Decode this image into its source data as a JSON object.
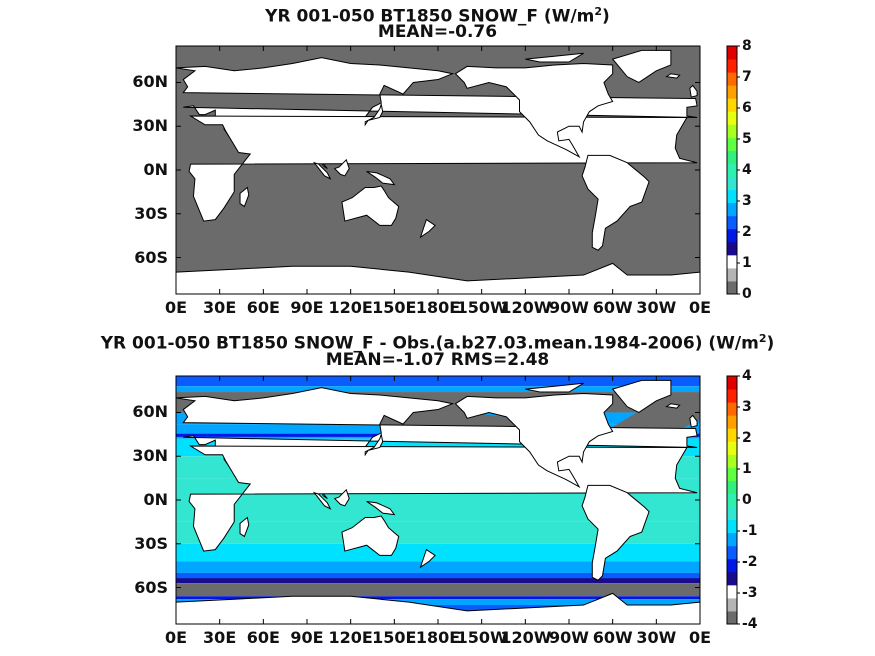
{
  "chart_data": [
    {
      "type": "heatmap",
      "title_main": "YR 001-050 BT1850  SNOW_F (W/m",
      "title_sup": "2",
      "title_end": ")",
      "subtitle": "MEAN=-0.76",
      "y_ticks": [
        "60N",
        "30N",
        "0N",
        "30S",
        "60S"
      ],
      "x_ticks": [
        "0E",
        "30E",
        "60E",
        "90E",
        "120E",
        "150E",
        "180E",
        "150W",
        "120W",
        "90W",
        "60W",
        "30W",
        "0E"
      ],
      "colorbar": {
        "ticks": [
          "0",
          "1",
          "2",
          "3",
          "4",
          "5",
          "6",
          "7",
          "8"
        ],
        "range": [
          0,
          8
        ],
        "colors": [
          "#6b6b6b",
          "#b4b4b4",
          "#ffffff",
          "#1a0a8c",
          "#0018e6",
          "#0a5cff",
          "#00a6ff",
          "#00e1ff",
          "#33e6d2",
          "#30f0b0",
          "#30f080",
          "#60ff40",
          "#a8ff20",
          "#e8ff10",
          "#ffd800",
          "#ffa000",
          "#ff6a00",
          "#ff2000",
          "#e00000"
        ]
      },
      "field_description": "ocean gray (near 0), land white"
    },
    {
      "type": "heatmap",
      "title_main": "YR 001-050 BT1850 SNOW_F - Obs.(a.b27.03.mean.1984-2006) (W/m",
      "title_sup": "2",
      "title_end": ")",
      "subtitle": "MEAN=-1.07 RMS=2.48",
      "y_ticks": [
        "60N",
        "30N",
        "0N",
        "30S",
        "60S"
      ],
      "x_ticks": [
        "0E",
        "30E",
        "60E",
        "90E",
        "120E",
        "150E",
        "180E",
        "150W",
        "120W",
        "90W",
        "60W",
        "30W",
        "0E"
      ],
      "colorbar": {
        "ticks": [
          "4",
          "3",
          "2",
          "1",
          "0",
          "-1",
          "-2",
          "-3",
          "-4"
        ],
        "range": [
          -4,
          4
        ],
        "colors": [
          "#6b6b6b",
          "#b4b4b4",
          "#ffffff",
          "#1a0a8c",
          "#0018e6",
          "#0a5cff",
          "#00a6ff",
          "#00e1ff",
          "#33e6d2",
          "#30f0b0",
          "#30f080",
          "#60ff40",
          "#a8ff20",
          "#e8ff10",
          "#ffd800",
          "#ffa000",
          "#ff6a00",
          "#ff2000",
          "#e00000"
        ]
      }
    }
  ]
}
